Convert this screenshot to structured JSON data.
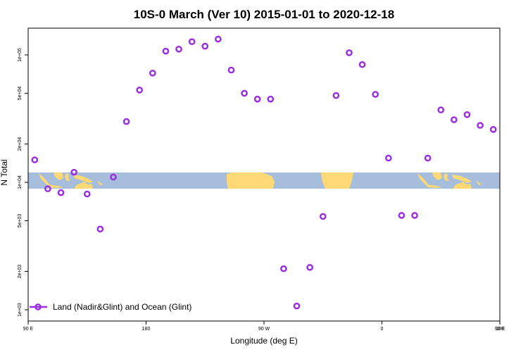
{
  "chart_data": {
    "type": "scatter",
    "title": "10S-0 March (Ver 10)   2015-01-01 to 2020-12-18",
    "xlabel": "Longitude (deg E)",
    "ylabel": "N Total",
    "xlim": [
      90,
      450
    ],
    "ylim": [
      1000,
      160000
    ],
    "y_scale": "log",
    "x_ticks": [
      {
        "value": 90,
        "label": "90 E"
      },
      {
        "value": 180,
        "label": "180"
      },
      {
        "value": 270,
        "label": "90 W"
      },
      {
        "value": 360,
        "label": "0"
      },
      {
        "value": 450,
        "label": "90 E"
      },
      {
        "value": 540,
        "label": "180"
      }
    ],
    "y_ticks": [
      {
        "value": 1000,
        "label": "1e+03"
      },
      {
        "value": 2000,
        "label": "2e+03"
      },
      {
        "value": 5000,
        "label": "5e+03"
      },
      {
        "value": 10000,
        "label": "1e+04"
      },
      {
        "value": 20000,
        "label": "2e+04"
      },
      {
        "value": 50000,
        "label": "5e+04"
      },
      {
        "value": 100000,
        "label": "1e+05"
      }
    ],
    "grid": false,
    "legend": {
      "position": "bottom-left"
    },
    "series": [
      {
        "name": "Land (Nadir&Glint) and Ocean (Glint)",
        "color": "#9b30e0",
        "marker": "open-circle",
        "points": [
          {
            "x": 95,
            "y": 15000
          },
          {
            "x": 105,
            "y": 8900
          },
          {
            "x": 115,
            "y": 8300
          },
          {
            "x": 125,
            "y": 12000
          },
          {
            "x": 135,
            "y": 8100
          },
          {
            "x": 145,
            "y": 4300
          },
          {
            "x": 155,
            "y": 11000
          },
          {
            "x": 165,
            "y": 30000
          },
          {
            "x": 175,
            "y": 53000
          },
          {
            "x": 185,
            "y": 72000
          },
          {
            "x": 195,
            "y": 107000
          },
          {
            "x": 205,
            "y": 111000
          },
          {
            "x": 215,
            "y": 127000
          },
          {
            "x": 225,
            "y": 117000
          },
          {
            "x": 235,
            "y": 133000
          },
          {
            "x": 245,
            "y": 76000
          },
          {
            "x": 255,
            "y": 50000
          },
          {
            "x": 265,
            "y": 45000
          },
          {
            "x": 275,
            "y": 45000
          },
          {
            "x": 285,
            "y": 2100
          },
          {
            "x": 295,
            "y": 1070
          },
          {
            "x": 305,
            "y": 2150
          },
          {
            "x": 315,
            "y": 5400
          },
          {
            "x": 325,
            "y": 48000
          },
          {
            "x": 335,
            "y": 104000
          },
          {
            "x": 345,
            "y": 84000
          },
          {
            "x": 355,
            "y": 49000
          },
          {
            "x": 365,
            "y": 15500
          },
          {
            "x": 375,
            "y": 5500
          },
          {
            "x": 385,
            "y": 5500
          },
          {
            "x": 395,
            "y": 15500
          },
          {
            "x": 405,
            "y": 37000
          },
          {
            "x": 415,
            "y": 31000
          },
          {
            "x": 425,
            "y": 34000
          },
          {
            "x": 435,
            "y": 28000
          },
          {
            "x": 445,
            "y": 26000
          }
        ]
      }
    ]
  }
}
